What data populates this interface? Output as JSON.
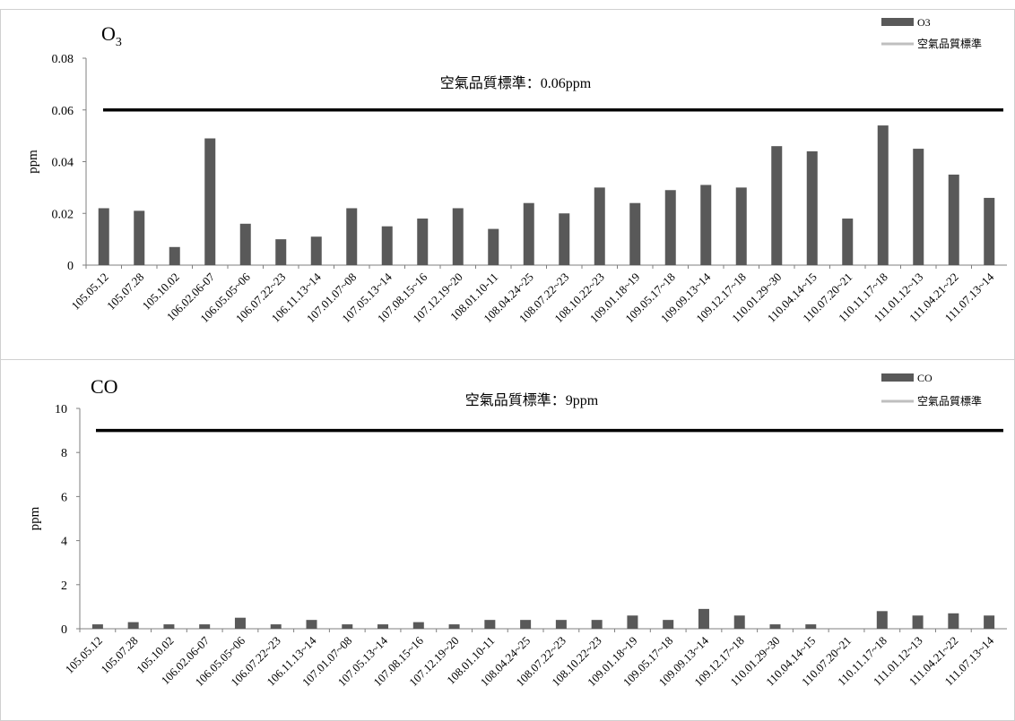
{
  "colors": {
    "bar": "#595959",
    "standard_line": "#000000",
    "legend_standard": "#bfbfbf",
    "axis": "#7f7f7f"
  },
  "chart_data": [
    {
      "type": "bar",
      "title_main": "O",
      "title_sub": "3",
      "ylabel": "ppm",
      "ylim": [
        0,
        0.08
      ],
      "yticks": [
        "0",
        "0.02",
        "0.04",
        "0.06",
        "0.08"
      ],
      "yticks_values": [
        0,
        0.02,
        0.04,
        0.06,
        0.08
      ],
      "standard_value": 0.06,
      "annotation": "空氣品質標準：0.06ppm",
      "legend": [
        "O3",
        "空氣品質標準"
      ],
      "categories": [
        "105.05.12",
        "105.07.28",
        "105.10.02",
        "106.02.06-07",
        "106.05.05~06",
        "106.07.22~23",
        "106.11.13~14",
        "107.01.07~08",
        "107.05.13~14",
        "107.08.15~16",
        "107.12.19~20",
        "108.01.10-11",
        "108.04.24~25",
        "108.07.22~23",
        "108.10.22~23",
        "109.01.18~19",
        "109.05.17~18",
        "109.09.13~14",
        "109.12.17~18",
        "110.01.29~30",
        "110.04.14~15",
        "110.07.20~21",
        "110.11.17~18",
        "111.01.12~13",
        "111.04.21~22",
        "111.07.13~14"
      ],
      "values": [
        0.022,
        0.021,
        0.007,
        0.049,
        0.016,
        0.01,
        0.011,
        0.022,
        0.015,
        0.018,
        0.022,
        0.014,
        0.024,
        0.02,
        0.03,
        0.024,
        0.029,
        0.031,
        0.03,
        0.046,
        0.044,
        0.018,
        0.054,
        0.045,
        0.035,
        0.026
      ]
    },
    {
      "type": "bar",
      "title_main": "CO",
      "title_sub": "",
      "ylabel": "ppm",
      "ylim": [
        0,
        10
      ],
      "yticks": [
        "0",
        "2",
        "4",
        "6",
        "8",
        "10"
      ],
      "yticks_values": [
        0,
        2,
        4,
        6,
        8,
        10
      ],
      "standard_value": 9,
      "annotation": "空氣品質標準：9ppm",
      "legend": [
        "CO",
        "空氣品質標準"
      ],
      "categories": [
        "105.05.12",
        "105.07.28",
        "105.10.02",
        "106.02.06-07",
        "106.05.05~06",
        "106.07.22~23",
        "106.11.13~14",
        "107.01.07~08",
        "107.05.13~14",
        "107.08.15~16",
        "107.12.19~20",
        "108.01.10-11",
        "108.04.24~25",
        "108.07.22~23",
        "108.10.22~23",
        "109.01.18~19",
        "109.05.17~18",
        "109.09.13~14",
        "109.12.17~18",
        "110.01.29~30",
        "110.04.14~15",
        "110.07.20~21",
        "110.11.17~18",
        "111.01.12~13",
        "111.04.21~22",
        "111.07.13~14"
      ],
      "values": [
        0.2,
        0.3,
        0.2,
        0.2,
        0.5,
        0.2,
        0.4,
        0.2,
        0.2,
        0.3,
        0.2,
        0.4,
        0.4,
        0.4,
        0.4,
        0.6,
        0.4,
        0.9,
        0.6,
        0.2,
        0.2,
        0.0,
        0.8,
        0.6,
        0.7,
        0.6
      ]
    }
  ]
}
